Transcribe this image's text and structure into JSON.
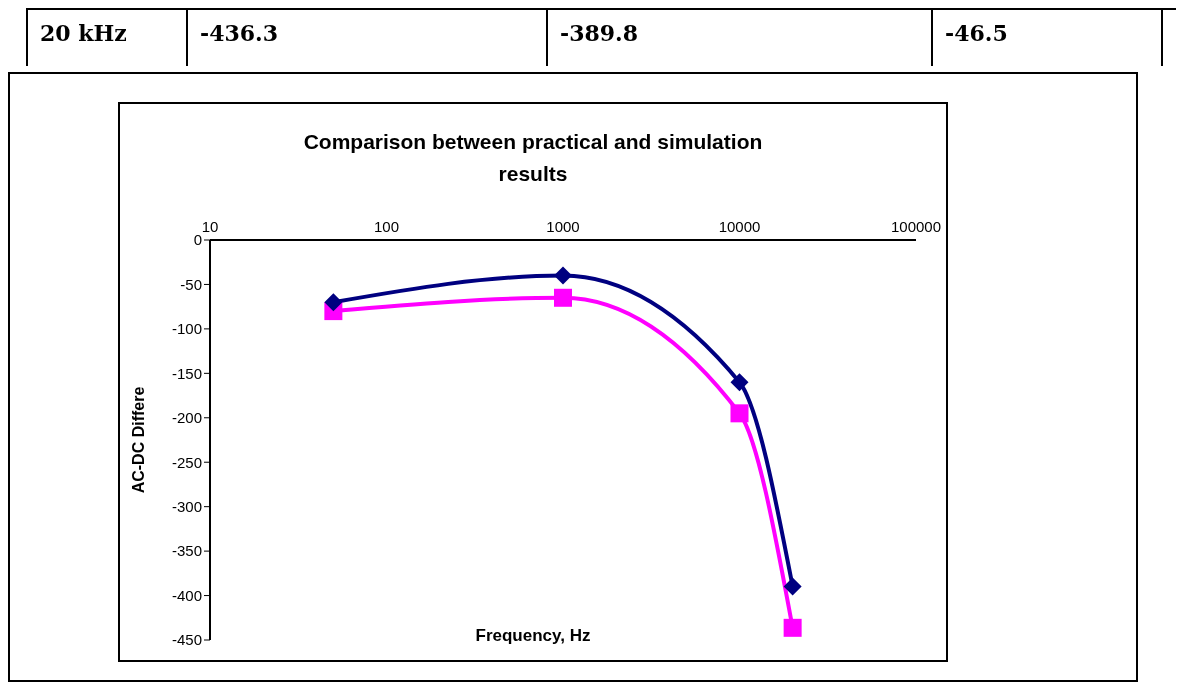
{
  "chart_data": {
    "type": "line",
    "title": "Comparison between practical and simulation results",
    "xlabel": "Frequency, Hz",
    "ylabel": "AC-DC Differe",
    "annotations": [
      "20 kHz",
      "-436.3",
      "-389.8",
      "-46.5"
    ],
    "x": [
      50,
      1000,
      10000,
      20000
    ],
    "log": "x",
    "series": [
      {
        "color": "#000080",
        "marker": "diamond",
        "values": [
          -70,
          -40,
          -160,
          -389.8
        ]
      },
      {
        "color": "#ff00ff",
        "marker": "square",
        "values": [
          -80,
          -65,
          -195,
          -436.3
        ]
      }
    ],
    "xlim": [
      10,
      100000
    ],
    "xticks": [
      10,
      100,
      1000,
      10000,
      100000
    ],
    "ylim": [
      -450,
      0
    ],
    "yticks": [
      -450,
      -400,
      -350,
      -300,
      -250,
      -200,
      -150,
      -100,
      -50,
      0
    ],
    "grid": false,
    "legend": false
  }
}
